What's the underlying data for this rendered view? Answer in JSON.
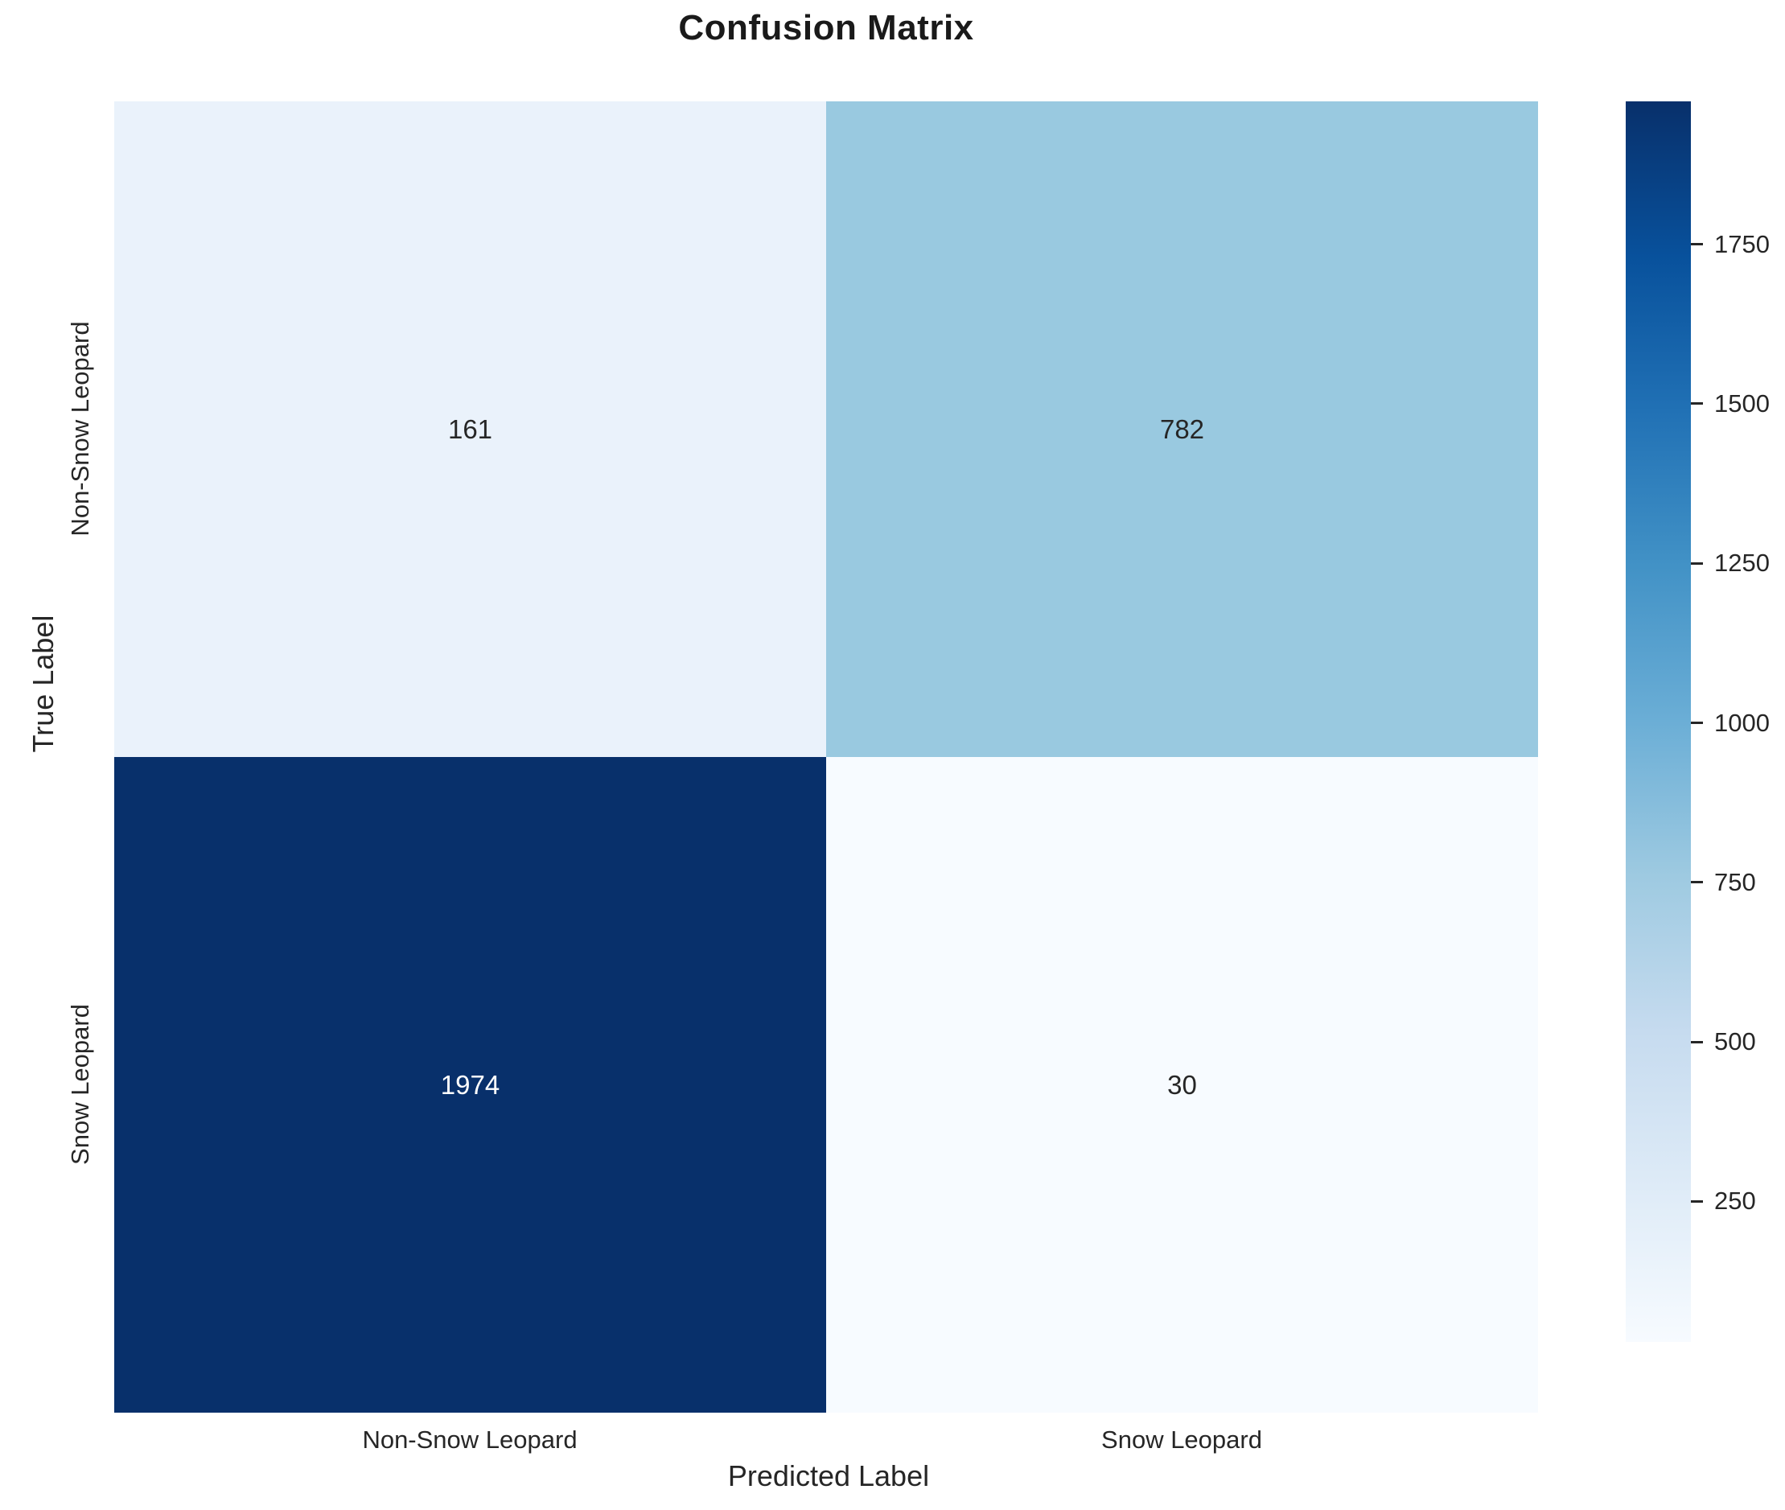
{
  "chart_data": {
    "type": "heatmap",
    "title": "Confusion Matrix",
    "xlabel": "Predicted Label",
    "ylabel": "True Label",
    "x_categories": [
      "Non-Snow Leopard",
      "Snow Leopard"
    ],
    "y_categories": [
      "Non-Snow Leopard",
      "Snow Leopard"
    ],
    "values": [
      [
        161,
        782
      ],
      [
        1974,
        30
      ]
    ],
    "cell_colors": [
      [
        "#eaf2fb",
        "#99c9e0"
      ],
      [
        "#08306b",
        "#f7fbff"
      ]
    ],
    "cell_text_colors": [
      [
        "#262626",
        "#262626"
      ],
      [
        "#ffffff",
        "#262626"
      ]
    ],
    "colormap": "Blues",
    "legend_position": "right",
    "grid": false,
    "colorbar": {
      "vmin": 30,
      "vmax": 1974,
      "ticks": [
        250,
        500,
        750,
        1000,
        1250,
        1500,
        1750
      ],
      "gradient_stops": [
        "#f7fbff",
        "#deebf7",
        "#c6dbef",
        "#9ecae1",
        "#6baed6",
        "#4292c6",
        "#2171b5",
        "#08519c",
        "#08306b"
      ]
    }
  }
}
